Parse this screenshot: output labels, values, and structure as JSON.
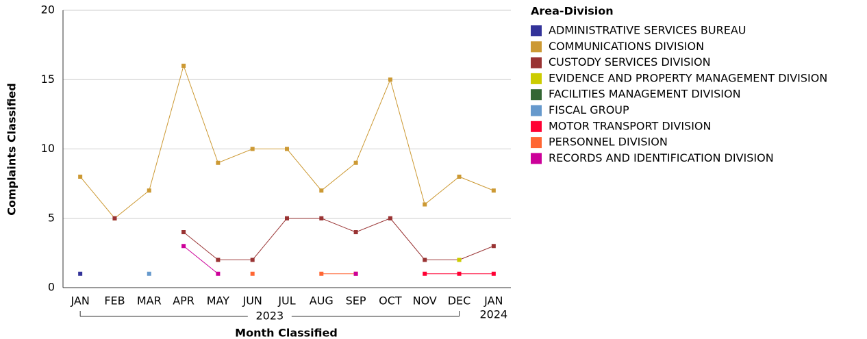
{
  "chart_data": {
    "type": "line",
    "y_label": "Complaints Classified",
    "x_label": "Month Classified",
    "legend_title": "Area-Division",
    "legend_position": "right",
    "grid": true,
    "categories": [
      "JAN",
      "FEB",
      "MAR",
      "APR",
      "MAY",
      "JUN",
      "JUL",
      "AUG",
      "SEP",
      "OCT",
      "NOV",
      "DEC",
      "JAN"
    ],
    "groups": [
      {
        "label": "2023",
        "count": 12
      },
      {
        "label": "2024",
        "count": 1
      }
    ],
    "ylim": [
      0,
      20
    ],
    "yticks": [
      0,
      5,
      10,
      15,
      20
    ],
    "series": [
      {
        "name": "ADMINISTRATIVE SERVICES BUREAU",
        "color": "#333399",
        "values": [
          1,
          null,
          null,
          null,
          null,
          null,
          null,
          null,
          null,
          null,
          null,
          null,
          null
        ]
      },
      {
        "name": "COMMUNICATIONS DIVISION",
        "color": "#cc9933",
        "values": [
          8,
          5,
          7,
          16,
          9,
          10,
          10,
          7,
          9,
          15,
          6,
          8,
          7
        ]
      },
      {
        "name": "CUSTODY SERVICES DIVISION",
        "color": "#993333",
        "values": [
          null,
          5,
          null,
          4,
          2,
          2,
          5,
          5,
          4,
          5,
          2,
          2,
          3
        ]
      },
      {
        "name": "EVIDENCE AND PROPERTY MANAGEMENT DIVISION",
        "color": "#cccc00",
        "values": [
          null,
          null,
          null,
          null,
          null,
          null,
          null,
          null,
          null,
          null,
          null,
          2,
          null
        ]
      },
      {
        "name": "FACILITIES MANAGEMENT DIVISION",
        "color": "#336633",
        "values": [
          null,
          null,
          null,
          null,
          null,
          null,
          null,
          null,
          null,
          null,
          null,
          null,
          null
        ]
      },
      {
        "name": "FISCAL GROUP",
        "color": "#6699cc",
        "values": [
          null,
          null,
          1,
          null,
          null,
          null,
          null,
          null,
          null,
          null,
          null,
          null,
          null
        ]
      },
      {
        "name": "MOTOR TRANSPORT DIVISION",
        "color": "#ff0033",
        "values": [
          null,
          null,
          null,
          null,
          null,
          null,
          null,
          null,
          null,
          null,
          1,
          1,
          1
        ]
      },
      {
        "name": "PERSONNEL DIVISION",
        "color": "#ff6633",
        "values": [
          null,
          null,
          null,
          null,
          null,
          1,
          null,
          1,
          1,
          null,
          null,
          null,
          null
        ]
      },
      {
        "name": "RECORDS AND IDENTIFICATION DIVISION",
        "color": "#cc0099",
        "values": [
          null,
          null,
          null,
          3,
          1,
          null,
          null,
          null,
          1,
          null,
          null,
          null,
          null
        ]
      }
    ]
  }
}
